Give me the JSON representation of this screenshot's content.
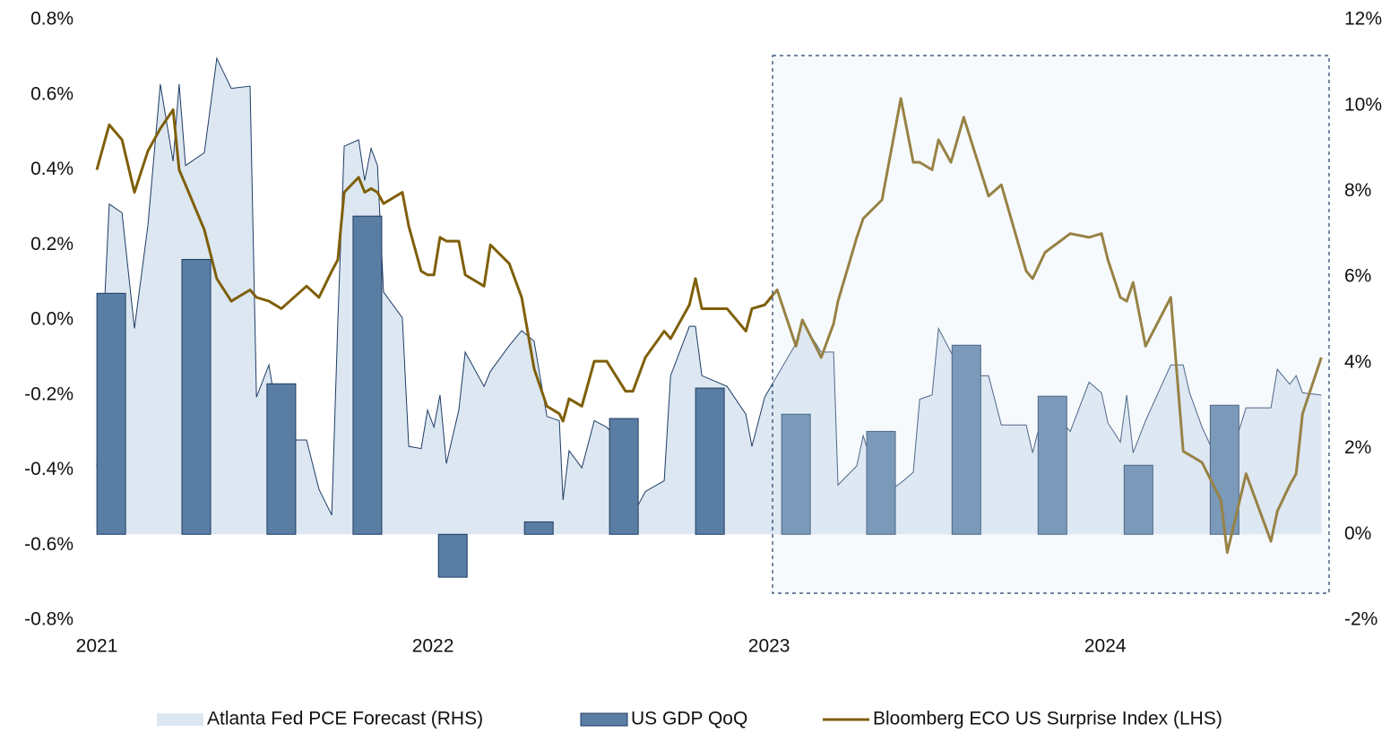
{
  "chart_data": {
    "type": "combo",
    "legend": "bottom",
    "grid": false,
    "xlim": [
      2021,
      2024.65
    ],
    "xticks": [
      2021,
      2022,
      2023,
      2024
    ],
    "ylim": [
      -0.8,
      0.8
    ],
    "yticks": [
      {
        "value": 0.8,
        "label": "0.8%"
      },
      {
        "value": 0.6,
        "label": "0.6%"
      },
      {
        "value": 0.4,
        "label": "0.4%"
      },
      {
        "value": 0.2,
        "label": "0.2%"
      },
      {
        "value": 0.0,
        "label": "0.0%"
      },
      {
        "value": -0.2,
        "label": "-0.2%"
      },
      {
        "value": -0.4,
        "label": "-0.4%"
      },
      {
        "value": -0.6,
        "label": "-0.6%"
      },
      {
        "value": -0.8,
        "label": "-0.8%"
      }
    ],
    "y2lim": [
      -2,
      12
    ],
    "y2ticks": [
      {
        "value": 12,
        "label": "12%"
      },
      {
        "value": 10,
        "label": "10%"
      },
      {
        "value": 8,
        "label": "8%"
      },
      {
        "value": 6,
        "label": "6%"
      },
      {
        "value": 4,
        "label": "4%"
      },
      {
        "value": 2,
        "label": "2%"
      },
      {
        "value": 0,
        "label": "0%"
      },
      {
        "value": -2,
        "label": "-2%"
      }
    ],
    "x": [
      2021.0,
      2021.037,
      2021.075,
      2021.112,
      2021.152,
      2021.189,
      2021.227,
      2021.245,
      2021.264,
      2021.32,
      2021.357,
      2021.4,
      2021.456,
      2021.475,
      2021.512,
      2021.549,
      2021.624,
      2021.661,
      2021.699,
      2021.717,
      2021.736,
      2021.779,
      2021.797,
      2021.816,
      2021.835,
      2021.853,
      2021.909,
      2021.928,
      2021.965,
      2021.984,
      2022.003,
      2022.021,
      2022.04,
      2022.077,
      2022.096,
      2022.152,
      2022.171,
      2022.227,
      2022.264,
      2022.301,
      2022.339,
      2022.376,
      2022.387,
      2022.405,
      2022.443,
      2022.48,
      2022.517,
      2022.573,
      2022.595,
      2022.632,
      2022.688,
      2022.707,
      2022.763,
      2022.781,
      2022.8,
      2022.875,
      2022.931,
      2022.949,
      2022.987,
      2023.024,
      2023.08,
      2023.099,
      2023.155,
      2023.192,
      2023.205,
      2023.261,
      2023.28,
      2023.336,
      2023.392,
      2023.429,
      2023.448,
      2023.485,
      2023.504,
      2023.541,
      2023.579,
      2023.653,
      2023.691,
      2023.765,
      2023.784,
      2023.821,
      2023.896,
      2023.952,
      2023.989,
      2024.008,
      2024.045,
      2024.064,
      2024.083,
      2024.12,
      2024.195,
      2024.232,
      2024.251,
      2024.288,
      2024.344,
      2024.363,
      2024.419,
      2024.493,
      2024.512,
      2024.549,
      2024.568,
      2024.587,
      2024.643
    ],
    "series": [
      {
        "name": "Atlanta Fed PCE Forecast (RHS)",
        "type": "area",
        "axis": "y2",
        "color": "#dce7f2",
        "values": [
          1.55,
          7.7,
          7.5,
          4.8,
          7.2,
          10.5,
          8.7,
          10.5,
          8.6,
          8.9,
          11.1,
          10.4,
          10.45,
          3.2,
          3.95,
          2.2,
          2.2,
          1.05,
          0.45,
          4.95,
          9.05,
          9.2,
          8.25,
          9.0,
          8.6,
          5.65,
          5.05,
          2.05,
          2.0,
          2.9,
          2.5,
          3.25,
          1.65,
          2.9,
          4.25,
          3.45,
          3.8,
          4.4,
          4.75,
          4.5,
          2.75,
          2.65,
          0.8,
          1.95,
          1.55,
          2.65,
          2.5,
          2.0,
          0.45,
          1.0,
          1.25,
          3.7,
          4.85,
          4.85,
          3.7,
          3.45,
          2.8,
          2.05,
          3.2,
          3.7,
          4.45,
          4.95,
          4.25,
          4.25,
          1.15,
          1.6,
          2.3,
          0.9,
          1.2,
          1.45,
          3.15,
          3.25,
          4.8,
          4.25,
          3.7,
          3.7,
          2.55,
          2.55,
          1.9,
          3.05,
          2.4,
          3.55,
          3.3,
          2.6,
          2.15,
          3.25,
          1.9,
          2.65,
          3.95,
          3.95,
          3.3,
          2.5,
          1.55,
          1.55,
          2.95,
          2.95,
          3.85,
          3.5,
          3.7,
          3.3,
          3.25
        ]
      },
      {
        "name": "US GDP QoQ",
        "type": "bar",
        "axis": "y2",
        "color": "#5a7ea3",
        "x": [
          2021.043,
          2021.296,
          2021.549,
          2021.805,
          2022.059,
          2022.315,
          2022.568,
          2022.824,
          2023.08,
          2023.333,
          2023.587,
          2023.843,
          2024.099,
          2024.355
        ],
        "values": [
          5.62,
          6.41,
          3.51,
          7.42,
          -1.0,
          0.29,
          2.7,
          3.41,
          2.8,
          2.4,
          4.41,
          3.22,
          1.61,
          3.01
        ]
      },
      {
        "name": "Bloomberg ECO US Surprise Index (LHS)",
        "type": "line",
        "color": "#7f5f0a",
        "values": [
          0.4,
          0.52,
          0.48,
          0.34,
          0.45,
          0.51,
          0.56,
          0.4,
          0.36,
          0.24,
          0.11,
          0.05,
          0.08,
          0.06,
          0.05,
          0.03,
          0.09,
          0.06,
          0.13,
          0.16,
          0.34,
          0.38,
          0.34,
          0.35,
          0.34,
          0.31,
          0.34,
          0.25,
          0.13,
          0.12,
          0.12,
          0.22,
          0.21,
          0.21,
          0.12,
          0.09,
          0.2,
          0.15,
          0.06,
          -0.13,
          -0.23,
          -0.25,
          -0.27,
          -0.21,
          -0.23,
          -0.11,
          -0.11,
          -0.19,
          -0.19,
          -0.1,
          -0.03,
          -0.05,
          0.04,
          0.11,
          0.03,
          0.03,
          -0.03,
          0.03,
          0.04,
          0.08,
          -0.07,
          0.0,
          -0.1,
          -0.01,
          0.05,
          0.22,
          0.27,
          0.32,
          0.59,
          0.42,
          0.42,
          0.4,
          0.48,
          0.42,
          0.54,
          0.33,
          0.36,
          0.13,
          0.11,
          0.18,
          0.23,
          0.22,
          0.23,
          0.16,
          0.06,
          0.05,
          0.1,
          -0.07,
          0.06,
          -0.35,
          -0.36,
          -0.38,
          -0.48,
          -0.62,
          -0.41,
          -0.59,
          -0.51,
          -0.44,
          -0.41,
          -0.25,
          -0.1
        ]
      }
    ]
  }
}
